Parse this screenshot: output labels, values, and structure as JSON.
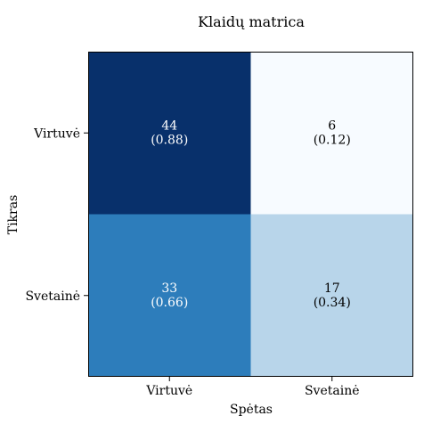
{
  "chart_data": {
    "type": "heatmap",
    "title": "Klaidų matrica",
    "xlabel": "Spėtas",
    "ylabel": "Tikras",
    "x_categories": [
      "Virtuvė",
      "Svetainė"
    ],
    "y_categories": [
      "Virtuvė",
      "Svetainė"
    ],
    "values": [
      [
        44,
        6
      ],
      [
        33,
        17
      ]
    ],
    "normalized": [
      [
        "(0.88)",
        "(0.12)"
      ],
      [
        "(0.66)",
        "(0.34)"
      ]
    ],
    "colormap": "Blues",
    "cell_colors": [
      [
        "#08306b",
        "#f7fbff"
      ],
      [
        "#2d7dbb",
        "#b8d5ea"
      ]
    ],
    "text_colors": [
      [
        "#ffffff",
        "#000000"
      ],
      [
        "#ffffff",
        "#000000"
      ]
    ],
    "grid": false,
    "colorbar": false
  }
}
